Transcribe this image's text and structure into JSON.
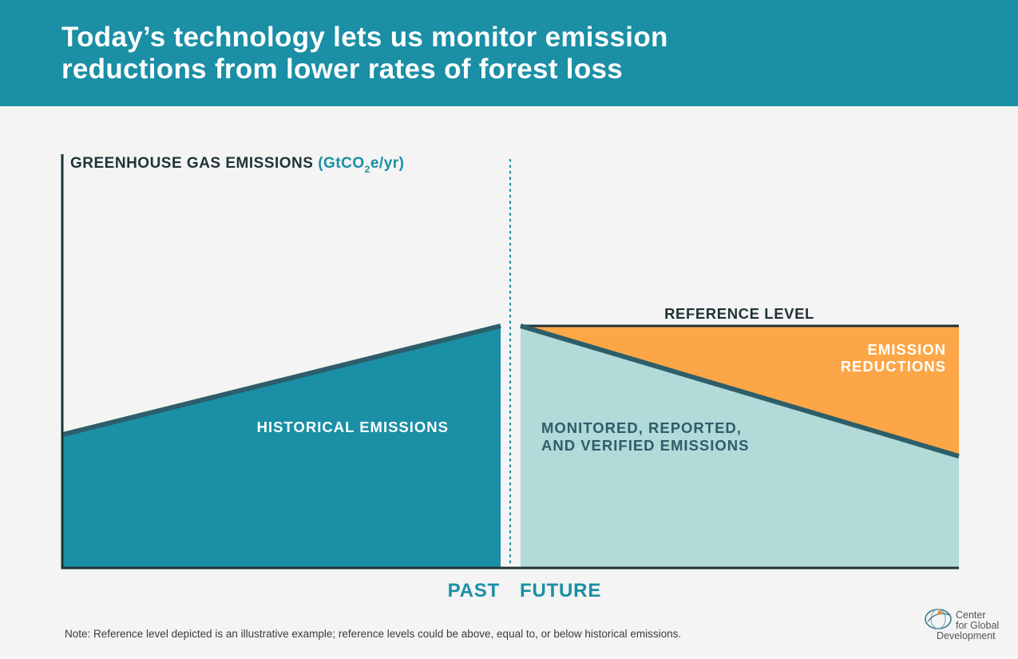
{
  "header": {
    "title_line1": "Today’s technology lets us monitor emission",
    "title_line2": "reductions from lower rates of forest loss"
  },
  "chart_data": {
    "type": "area",
    "ylabel_main": "GREENHOUSE GAS EMISSIONS ",
    "ylabel_unit_pre": "(GtCO",
    "ylabel_unit_sub": "2",
    "ylabel_unit_post": "e/yr)",
    "x_categories": [
      "PAST",
      "FUTURE"
    ],
    "divider": "dotted",
    "past": {
      "label": "HISTORICAL EMISSIONS",
      "trend": "increasing",
      "start": 0.55,
      "end": 1.0
    },
    "future": {
      "reference_level_label": "REFERENCE LEVEL",
      "reference_level": 1.0,
      "monitored_label_line1": "MONITORED, REPORTED,",
      "monitored_label_line2": "AND VERIFIED EMISSIONS",
      "monitored_trend": "decreasing",
      "monitored_start": 1.0,
      "monitored_end": 0.46,
      "reductions_label_line1": "EMISSION",
      "reductions_label_line2": "REDUCTIONS"
    },
    "colors": {
      "historical": "#1a8fa5",
      "monitored": "#b1dad8",
      "reductions": "#fda647",
      "line": "#2d5e6a",
      "axis": "#1f3238",
      "divider": "#1a8fa5"
    }
  },
  "footer": {
    "note": "Note: Reference level depicted is an illustrative example; reference levels could be above, equal to, or below historical emissions.",
    "logo_line1": "Center",
    "logo_line2": "for Global",
    "logo_line3": "Development"
  }
}
